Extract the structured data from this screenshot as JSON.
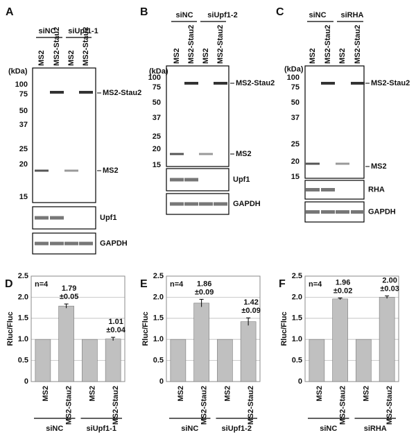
{
  "blots": [
    {
      "label": "A",
      "groups": [
        "siNC",
        "siUpf1-1"
      ],
      "lanes": [
        "MS2",
        "MS2-Stau2",
        "MS2",
        "MS2-Stau2"
      ],
      "kda_title": "(kDa)",
      "markers": [
        "100",
        "75",
        "50",
        "37",
        "25",
        "20",
        "15"
      ],
      "bands": [
        "MS2-Stau2",
        "MS2"
      ],
      "strips": [
        "Upf1",
        "GAPDH"
      ]
    },
    {
      "label": "B",
      "groups": [
        "siNC",
        "siUpf1-2"
      ],
      "lanes": [
        "MS2",
        "MS2-Stau2",
        "MS2",
        "MS2-Stau2"
      ],
      "kda_title": "(kDa)",
      "markers": [
        "100",
        "75",
        "50",
        "37",
        "25",
        "20",
        "15"
      ],
      "bands": [
        "MS2-Stau2",
        "MS2"
      ],
      "strips": [
        "Upf1",
        "GAPDH"
      ]
    },
    {
      "label": "C",
      "groups": [
        "siNC",
        "siRHA"
      ],
      "lanes": [
        "MS2",
        "MS2-Stau2",
        "MS2",
        "MS2-Stau2"
      ],
      "kda_title": "(kDa)",
      "markers": [
        "100",
        "75",
        "50",
        "37",
        "25",
        "20",
        "15"
      ],
      "bands": [
        "MS2-Stau2",
        "MS2"
      ],
      "strips": [
        "RHA",
        "GAPDH"
      ]
    }
  ],
  "chart_data": [
    {
      "type": "bar",
      "panel": "D",
      "ylabel": "Rluc/Fluc",
      "annotation": "n=4",
      "categories": [
        "MS2",
        "MS2-Stau2",
        "MS2",
        "MS2-Stau2"
      ],
      "groups": [
        "siNC",
        "siUpf1-1"
      ],
      "values": [
        1,
        1.79,
        1,
        1.01
      ],
      "errors": [
        null,
        0.05,
        null,
        0.04
      ],
      "value_labels": [
        null,
        "1.79",
        null,
        "1.01"
      ],
      "error_labels": [
        null,
        "±0.05",
        null,
        "±0.04"
      ],
      "color": "#c0c0c0",
      "ylim": [
        0,
        2.5
      ],
      "yticks": [
        0,
        0.5,
        {
          "value": 1,
          "label": "1.0"
        },
        1.5,
        {
          "value": 2,
          "label": "2.0"
        },
        2.5
      ],
      "grid": true
    },
    {
      "type": "bar",
      "panel": "E",
      "ylabel": "Rluc/Fluc",
      "annotation": "n=4",
      "categories": [
        "MS2",
        "MS2-Stau2",
        "MS2",
        "MS2-Stau2"
      ],
      "groups": [
        "siNC",
        "siUpf1-2"
      ],
      "values": [
        1,
        1.86,
        1,
        1.42
      ],
      "errors": [
        null,
        0.09,
        null,
        0.09
      ],
      "value_labels": [
        null,
        "1.86",
        null,
        "1.42"
      ],
      "error_labels": [
        null,
        "±0.09",
        null,
        "±0.09"
      ],
      "color": "#c0c0c0",
      "ylim": [
        0,
        2.5
      ],
      "yticks": [
        0,
        0.5,
        {
          "value": 1,
          "label": "1.0"
        },
        1.5,
        {
          "value": 2,
          "label": "2.0"
        },
        2.5
      ],
      "grid": true
    },
    {
      "type": "bar",
      "panel": "F",
      "ylabel": "Rluc/Fluc",
      "annotation": "n=4",
      "categories": [
        "MS2",
        "MS2-Stau2",
        "MS2",
        "MS2-Stau2"
      ],
      "groups": [
        "siNC",
        "siRHA"
      ],
      "values": [
        1,
        1.96,
        1,
        2.0
      ],
      "errors": [
        null,
        0.02,
        null,
        0.03
      ],
      "value_labels": [
        null,
        "1.96",
        null,
        "2.00"
      ],
      "error_labels": [
        null,
        "±0.02",
        null,
        "±0.03"
      ],
      "color": "#c0c0c0",
      "ylim": [
        0,
        2.5
      ],
      "yticks": [
        0,
        0.5,
        {
          "value": 1,
          "label": "1.0"
        },
        1.5,
        {
          "value": 2,
          "label": "2.0"
        },
        2.5
      ],
      "grid": true
    }
  ]
}
